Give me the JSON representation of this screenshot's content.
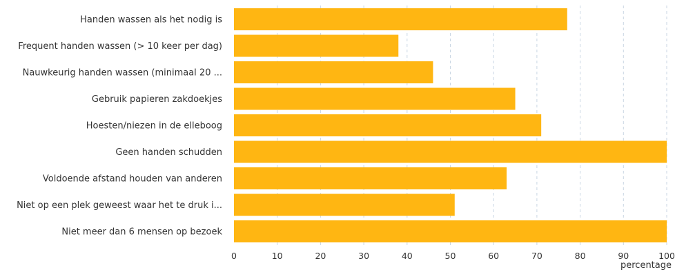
{
  "chart_data": {
    "type": "bar",
    "orientation": "horizontal",
    "categories": [
      "Handen wassen als het nodig is",
      "Frequent handen wassen (> 10 keer per dag)",
      "Nauwkeurig handen wassen (minimaal 20 ...",
      "Gebruik papieren zakdoekjes",
      "Hoesten/niezen in de elleboog",
      "Geen handen schudden",
      "Voldoende afstand houden van anderen",
      "Niet op een plek geweest waar het te druk i...",
      "Niet meer dan 6 mensen op bezoek"
    ],
    "values": [
      77,
      38,
      46,
      65,
      71,
      100,
      63,
      51,
      100
    ],
    "xlabel": "percentage",
    "xlim": [
      0,
      100
    ],
    "xticks": [
      "0",
      "10",
      "20",
      "30",
      "40",
      "50",
      "60",
      "70",
      "80",
      "90",
      "100"
    ],
    "bar_color": "#FFB612",
    "grid": true,
    "grid_color": "#C9D6E3"
  }
}
